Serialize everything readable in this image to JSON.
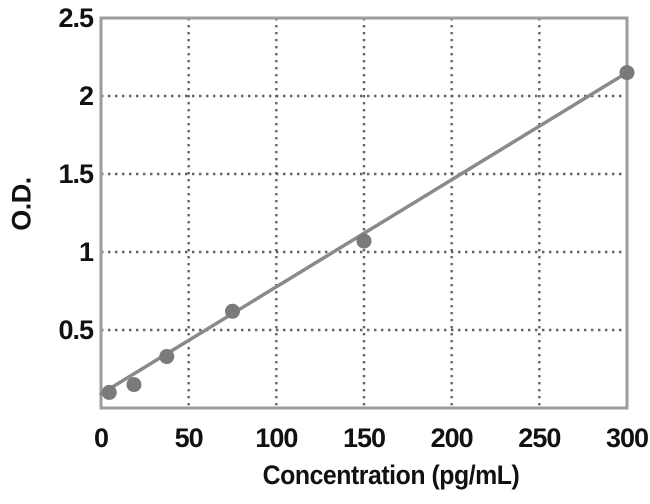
{
  "chart_data": {
    "type": "scatter",
    "title": "",
    "xlabel": "Concentration (pg/mL)",
    "ylabel": "O.D.",
    "xlim": [
      0,
      300
    ],
    "ylim": [
      0,
      2.5
    ],
    "x_ticks": [
      0,
      50,
      100,
      150,
      200,
      250,
      300
    ],
    "y_ticks": [
      0.5,
      1,
      1.5,
      2,
      2.5
    ],
    "grid": "dotted gridlines at every x and y tick, full plot box border",
    "legend": "none",
    "points": [
      {
        "x": 4.7,
        "y": 0.1
      },
      {
        "x": 18.8,
        "y": 0.15
      },
      {
        "x": 37.5,
        "y": 0.33
      },
      {
        "x": 75,
        "y": 0.62
      },
      {
        "x": 150,
        "y": 1.07
      },
      {
        "x": 300,
        "y": 2.15
      }
    ],
    "trend_line": {
      "x1": 0,
      "y1": 0.09,
      "x2": 300,
      "y2": 2.15
    },
    "colors": {
      "marker": "#7a7a7a",
      "trend_line": "#8a8a8a",
      "grid": "#636363",
      "axis_border": "#9c9c9c",
      "text": "#111111",
      "background": "#ffffff"
    }
  }
}
